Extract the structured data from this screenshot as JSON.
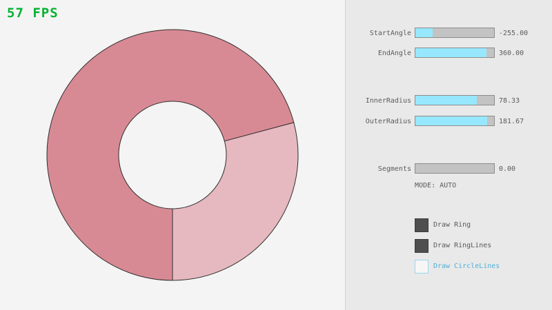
{
  "fps": "57 FPS",
  "colors": {
    "fps_green": "#00b32f",
    "accent_cyan": "#97e8ff",
    "panel_bg": "#e9e9e9",
    "text_gray": "#5a5a5a"
  },
  "ring": {
    "colors": {
      "dark_sector": "#d88a94",
      "light_sector": "#e6b8bf",
      "line": "#2e2e2e"
    }
  },
  "panel": {
    "sliders": [
      {
        "label": "StartAngle",
        "value": "-255.00",
        "fill_pct": 22
      },
      {
        "label": "EndAngle",
        "value": "360.00",
        "fill_pct": 90
      },
      {
        "label": "InnerRadius",
        "value": "78.33",
        "fill_pct": 78
      },
      {
        "label": "OuterRadius",
        "value": "181.67",
        "fill_pct": 91
      },
      {
        "label": "Segments",
        "value": "0.00",
        "fill_pct": 0
      }
    ],
    "mode_text": "MODE: AUTO",
    "checkboxes": [
      {
        "label": "Draw Ring",
        "checked": true
      },
      {
        "label": "Draw RingLines",
        "checked": true
      },
      {
        "label": "Draw CircleLines",
        "checked": false
      }
    ]
  }
}
